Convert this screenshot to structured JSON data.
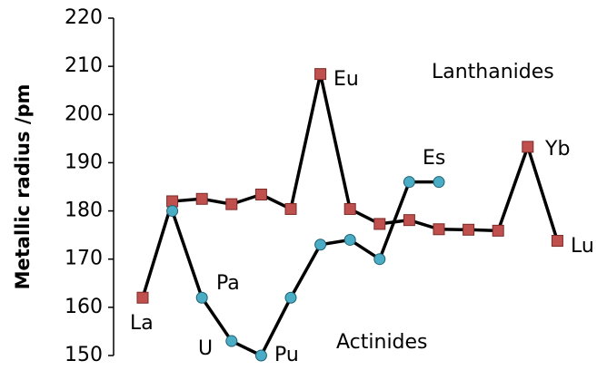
{
  "chart_data": {
    "type": "line",
    "y_label": "Metallic radius /pm",
    "categories": [
      null,
      null,
      null,
      null,
      null,
      null,
      null,
      null,
      null,
      null,
      null,
      null,
      null,
      null,
      null
    ],
    "series": [
      {
        "name": "Lanthanides",
        "color": "#c0504d",
        "marker": "square",
        "values": [
          162,
          182,
          182.5,
          181.4,
          183.4,
          180.4,
          208.4,
          180.4,
          177.3,
          178.1,
          176.2,
          176.1,
          175.9,
          193.3,
          173.8
        ]
      },
      {
        "name": "Actinides",
        "color": "#4bacc6",
        "marker": "circle",
        "values": [
          null,
          180,
          162,
          153,
          150,
          162,
          173,
          174,
          170,
          186,
          186,
          null,
          null,
          null,
          null
        ]
      }
    ],
    "annotations": [
      "La",
      "Eu",
      "Lanthanides",
      "Es",
      "Yb",
      "Lu",
      "Pa",
      "U",
      "Pu",
      "Actinides"
    ],
    "ylim": [
      150,
      220
    ],
    "yticks": [
      150,
      160,
      170,
      180,
      190,
      200,
      210,
      220
    ],
    "grid": false
  }
}
